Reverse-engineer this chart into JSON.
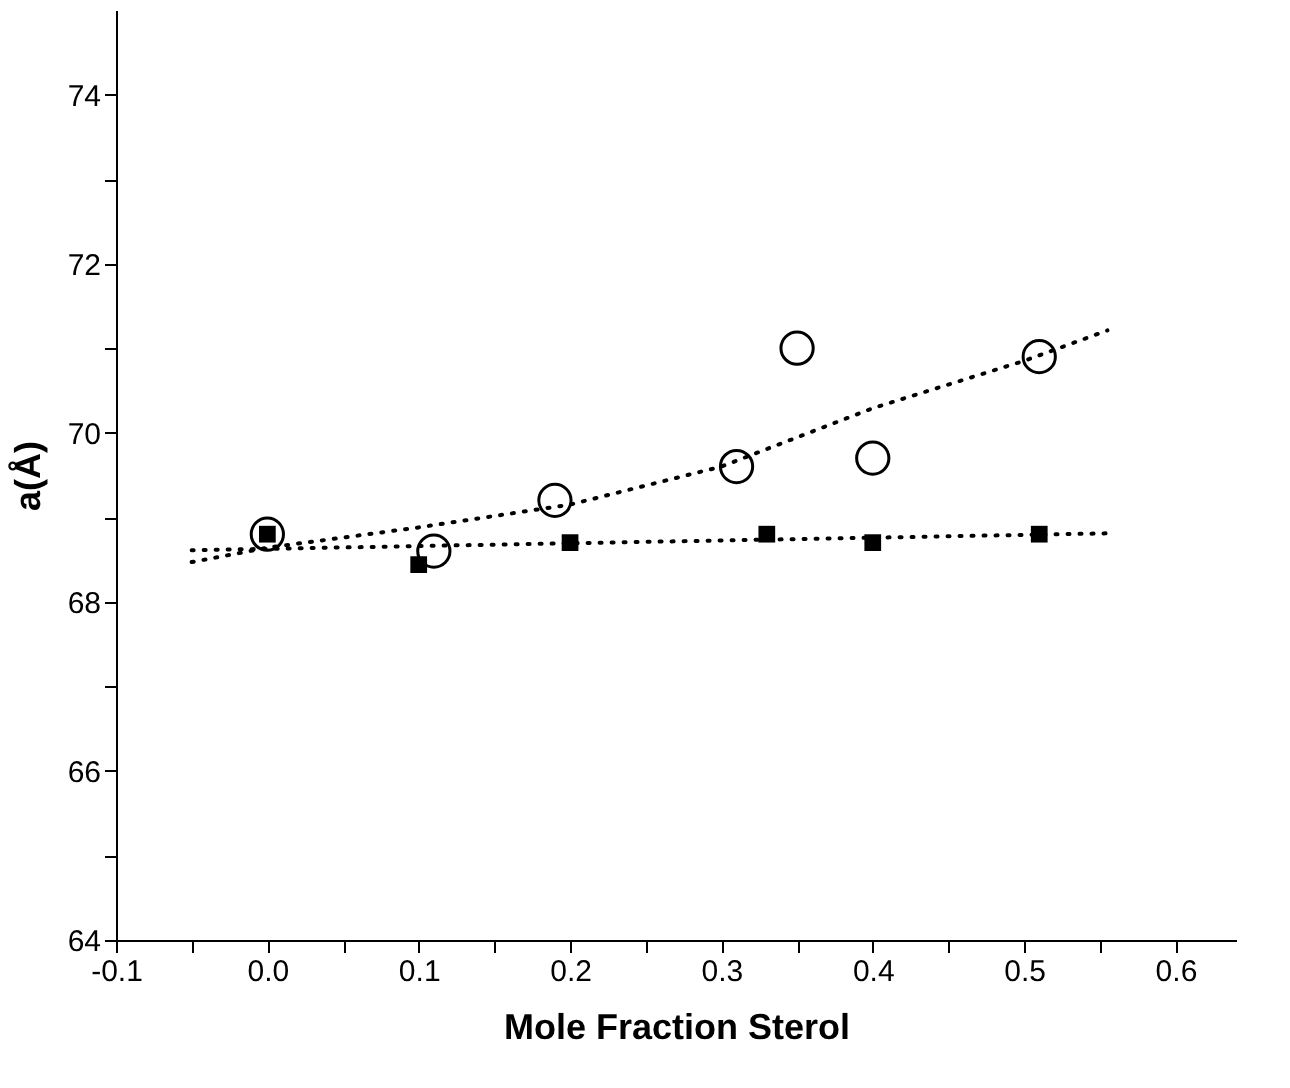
{
  "chart_data": {
    "type": "scatter",
    "xlabel": "Mole Fraction Sterol",
    "ylabel": "a(Å)",
    "xlim": [
      -0.1,
      0.64
    ],
    "ylim": [
      64,
      75
    ],
    "xticks": [
      {
        "value": -0.1,
        "label": "-0.1"
      },
      {
        "value": -0.05,
        "label": null
      },
      {
        "value": 0,
        "label": "0.0"
      },
      {
        "value": 0.05,
        "label": null
      },
      {
        "value": 0.1,
        "label": "0.1"
      },
      {
        "value": 0.15,
        "label": null
      },
      {
        "value": 0.2,
        "label": "0.2"
      },
      {
        "value": 0.25,
        "label": null
      },
      {
        "value": 0.3,
        "label": "0.3"
      },
      {
        "value": 0.35,
        "label": null
      },
      {
        "value": 0.4,
        "label": "0.4"
      },
      {
        "value": 0.45,
        "label": null
      },
      {
        "value": 0.5,
        "label": "0.5"
      },
      {
        "value": 0.55,
        "label": null
      },
      {
        "value": 0.6,
        "label": "0.6"
      }
    ],
    "yticks": [
      64,
      {
        "value": 65,
        "label": null
      },
      66,
      {
        "value": 67,
        "label": null
      },
      68,
      {
        "value": 69,
        "label": null
      },
      70,
      {
        "value": 71,
        "label": null
      },
      72,
      {
        "value": 73,
        "label": null
      },
      74
    ],
    "grid": false,
    "series": [
      {
        "marker": "square",
        "color": "#000000",
        "x": [
          0,
          0.1,
          0.2,
          0.33,
          0.4,
          0.51
        ],
        "values": [
          68.8,
          68.44,
          68.7,
          68.8,
          68.7,
          68.8
        ]
      },
      {
        "marker": "circle",
        "color": "#000000",
        "x": [
          0,
          0.11,
          0.19,
          0.31,
          0.35,
          0.4,
          0.51
        ],
        "values": [
          68.8,
          68.6,
          69.2,
          69.6,
          71.0,
          69.7,
          70.9
        ]
      },
      {
        "type": "line",
        "line_style": "dotted",
        "color": "#000000",
        "x": [
          -0.05,
          0,
          0.1,
          0.2,
          0.3,
          0.4,
          0.5,
          0.555
        ],
        "values": [
          68.47,
          68.64,
          68.88,
          69.15,
          69.6,
          70.29,
          70.85,
          71.21
        ]
      },
      {
        "type": "line",
        "line_style": "dotted",
        "color": "#000000",
        "x": [
          -0.05,
          0.555
        ],
        "values": [
          68.61,
          68.81
        ]
      }
    ]
  }
}
